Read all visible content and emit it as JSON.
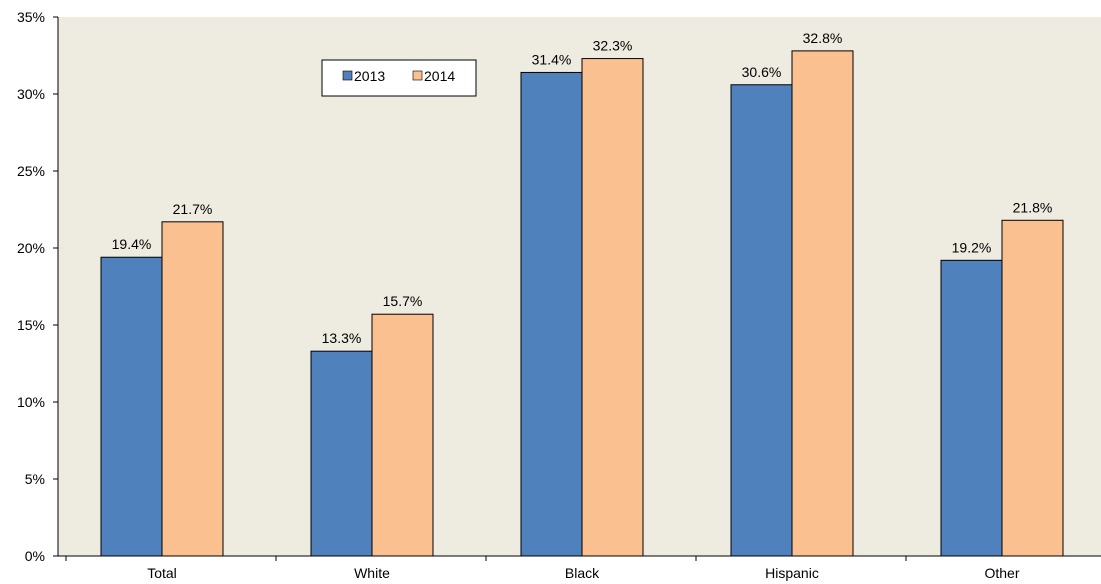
{
  "chart_data": {
    "type": "bar",
    "title": "",
    "xlabel": "",
    "ylabel": "",
    "categories": [
      "Total",
      "White",
      "Black",
      "Hispanic",
      "Other"
    ],
    "series": [
      {
        "name": "2013",
        "values": [
          19.4,
          13.3,
          31.4,
          30.6,
          19.2
        ],
        "labels": [
          "19.4%",
          "13.3%",
          "31.4%",
          "30.6%",
          "19.2%"
        ],
        "color": "#4F81BD"
      },
      {
        "name": "2014",
        "values": [
          21.7,
          15.7,
          32.3,
          32.8,
          21.8
        ],
        "labels": [
          "21.7%",
          "15.7%",
          "32.3%",
          "32.8%",
          "21.8%"
        ],
        "color": "#FAC090"
      }
    ],
    "ylim": [
      0,
      35
    ],
    "yticks": [
      0,
      5,
      10,
      15,
      20,
      25,
      30,
      35
    ],
    "ytick_labels": [
      "0%",
      "5%",
      "10%",
      "15%",
      "20%",
      "25%",
      "30%",
      "35%"
    ],
    "grid": false,
    "legend_position": "top-left",
    "plot_background": "#EEEBE1"
  }
}
